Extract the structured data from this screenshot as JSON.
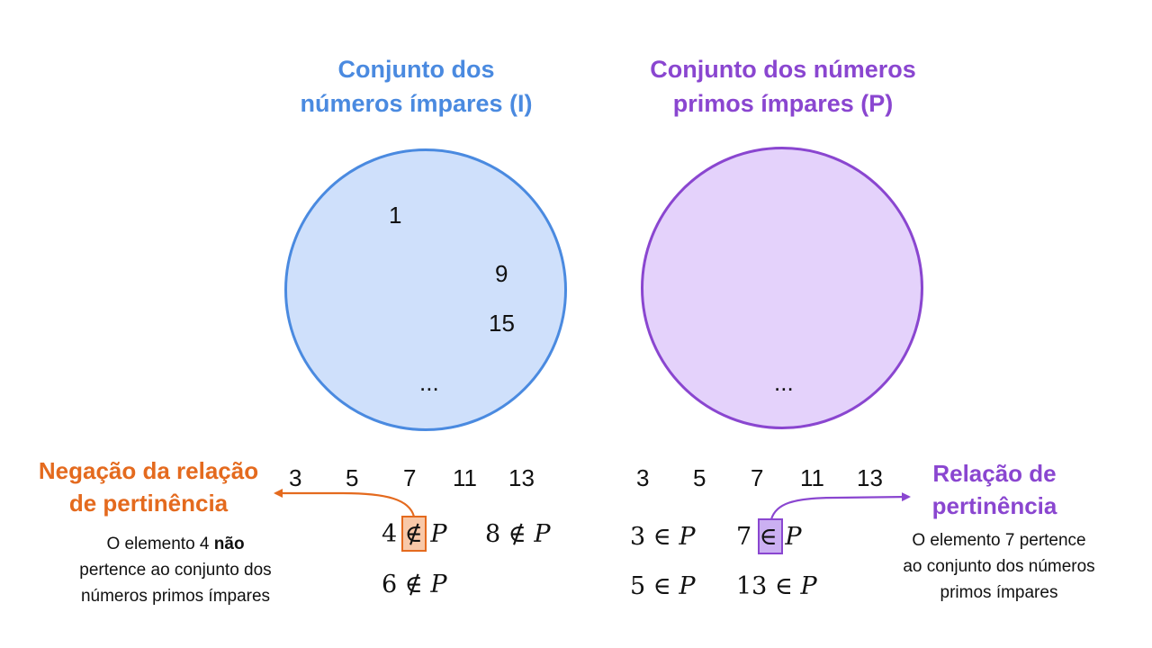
{
  "title_i": "Conjunto dos\nnúmeros ímpares (I)",
  "title_p": "Conjunto dos números\nprimos ímpares (P)",
  "set_i_elements": [
    "1",
    "9",
    "15",
    "..."
  ],
  "set_p_elements": [
    "..."
  ],
  "left_row": [
    "3",
    "5",
    "7",
    "11",
    "13"
  ],
  "right_row": [
    "3",
    "5",
    "7",
    "11",
    "13"
  ],
  "negation": {
    "title": "Negação da relação\nde pertinência",
    "description_before": "O elemento 4 ",
    "description_bold": "não",
    "description_after": "\npertence ao conjunto dos\nnúmeros primos ímpares",
    "expressions": [
      {
        "num": "4",
        "op": "∉",
        "set": "P"
      },
      {
        "num": "8",
        "op": "∉",
        "set": "P"
      },
      {
        "num": "6",
        "op": "∉",
        "set": "P"
      }
    ]
  },
  "relation": {
    "title": "Relação de\npertinência",
    "description": "O elemento 7 pertence\nao conjunto dos números\nprimos ímpares",
    "expressions": [
      {
        "num": "3",
        "op": "∈",
        "set": "P"
      },
      {
        "num": "7",
        "op": "∈",
        "set": "P"
      },
      {
        "num": "5",
        "op": "∈",
        "set": "P"
      },
      {
        "num": "13",
        "op": "∈",
        "set": "P"
      }
    ]
  },
  "colors": {
    "blue": "#4a8ae0",
    "purple": "#8a46d0",
    "orange": "#e46a1e"
  }
}
